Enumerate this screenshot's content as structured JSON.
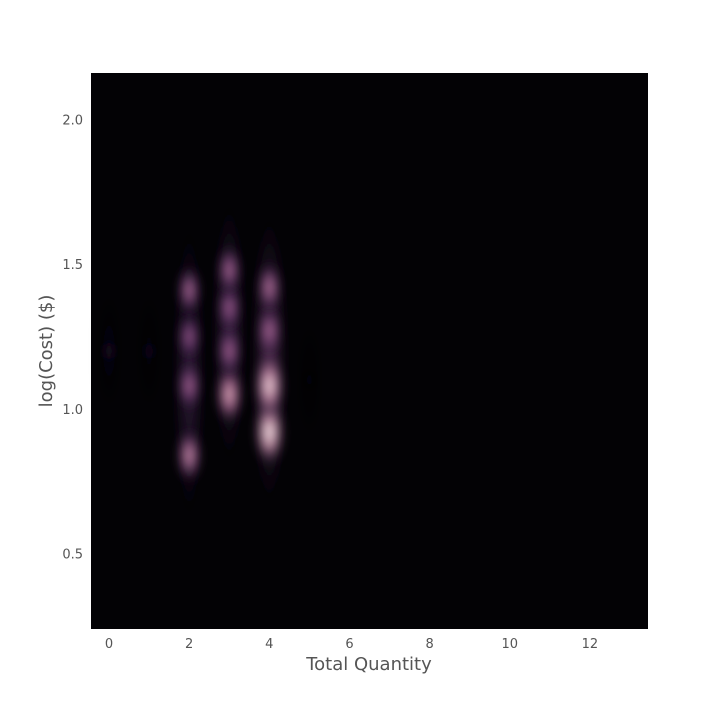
{
  "chart_data": {
    "type": "heatmap",
    "subtype": "2d-kde-density",
    "title": "",
    "xlabel": "Total Quantity",
    "ylabel": "log(Cost) ($)",
    "xlim": [
      -0.45,
      13.45
    ],
    "ylim": [
      0.24,
      2.16
    ],
    "x_ticks": [
      0,
      2,
      4,
      6,
      8,
      10,
      12
    ],
    "y_ticks": [
      0.5,
      1.0,
      1.5,
      2.0
    ],
    "x_tick_labels": [
      "0",
      "2",
      "4",
      "6",
      "8",
      "10",
      "12"
    ],
    "y_tick_labels": [
      "0.5",
      "1.0",
      "1.5",
      "2.0"
    ],
    "grid": false,
    "colormap": [
      "#030205",
      "#2a1838",
      "#6a3a70",
      "#b06b93",
      "#e6b5c0",
      "#fff8f4"
    ],
    "density_columns": [
      {
        "x": 0,
        "blobs": [
          {
            "y": 1.2,
            "intensity": 0.12
          }
        ]
      },
      {
        "x": 1,
        "blobs": [
          {
            "y": 1.2,
            "intensity": 0.09
          }
        ]
      },
      {
        "x": 2,
        "blobs": [
          {
            "y": 0.84,
            "intensity": 0.72
          },
          {
            "y": 1.08,
            "intensity": 0.6
          },
          {
            "y": 1.25,
            "intensity": 0.55
          },
          {
            "y": 1.41,
            "intensity": 0.62
          }
        ]
      },
      {
        "x": 3,
        "blobs": [
          {
            "y": 1.05,
            "intensity": 0.82
          },
          {
            "y": 1.2,
            "intensity": 0.6
          },
          {
            "y": 1.35,
            "intensity": 0.58
          },
          {
            "y": 1.48,
            "intensity": 0.62
          }
        ]
      },
      {
        "x": 4,
        "blobs": [
          {
            "y": 0.92,
            "intensity": 1.0
          },
          {
            "y": 1.08,
            "intensity": 0.95
          },
          {
            "y": 1.27,
            "intensity": 0.62
          },
          {
            "y": 1.42,
            "intensity": 0.65
          }
        ]
      },
      {
        "x": 5,
        "blobs": [
          {
            "y": 1.1,
            "intensity": 0.05
          }
        ]
      }
    ]
  }
}
